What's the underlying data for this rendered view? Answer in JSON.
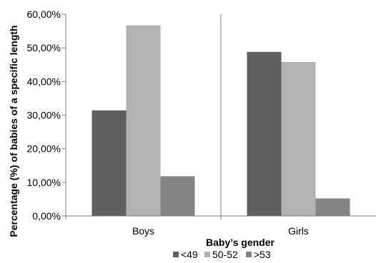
{
  "chart_data": {
    "type": "bar",
    "title": "",
    "xlabel": "Baby’s gender",
    "ylabel": "Percentage (%) of babies of a specific length",
    "categories": [
      "Boys",
      "Girls"
    ],
    "series": [
      {
        "name": "<49",
        "values": [
          31.4,
          48.8
        ],
        "color": "#5f5f5f"
      },
      {
        "name": "50-52",
        "values": [
          56.7,
          45.8
        ],
        "color": "#b2b2b2"
      },
      {
        "name": ">53",
        "values": [
          11.8,
          5.2
        ],
        "color": "#848484"
      }
    ],
    "ylim": [
      0,
      60
    ],
    "yticks": [
      0,
      10,
      20,
      30,
      40,
      50,
      60
    ],
    "ytick_labels": [
      "0,00%",
      "10,00%",
      "20,00%",
      "30,00%",
      "40,00%",
      "50,00%",
      "60,00%"
    ],
    "grid": "vertical category separators",
    "legend_position": "bottom"
  }
}
